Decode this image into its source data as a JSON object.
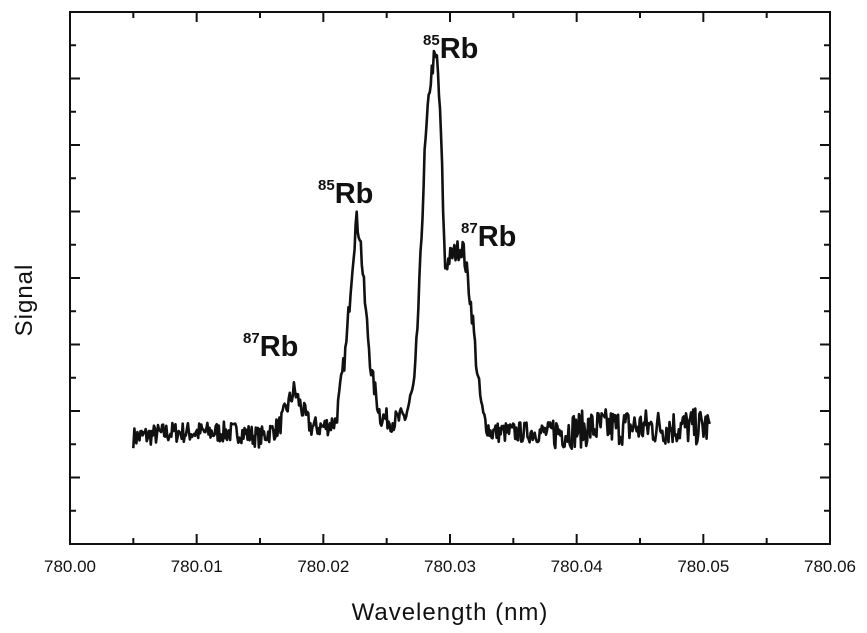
{
  "chart_data": {
    "type": "line",
    "xlabel": "Wavelength (nm)",
    "ylabel": "Signal",
    "xlim": [
      780.0,
      780.06
    ],
    "ylim": [
      0,
      1
    ],
    "x_ticks": [
      "780.00",
      "780.01",
      "780.02",
      "780.03",
      "780.04",
      "780.05",
      "780.06"
    ],
    "y_ticks_labeled": false,
    "grid": false,
    "series": [
      {
        "x": [
          780.005,
          780.008,
          780.011,
          780.0135,
          780.015,
          780.0165,
          780.0172,
          780.0177,
          780.0182,
          780.019,
          780.02,
          780.021,
          780.0218,
          780.0222,
          780.0226,
          780.0229,
          780.0233,
          780.0238,
          780.0245,
          780.0255,
          780.0265,
          780.0272,
          780.0276,
          780.028,
          780.0284,
          780.0287,
          780.029,
          780.0293,
          780.0296,
          780.03,
          780.0305,
          780.031,
          780.0314,
          780.0318,
          780.0322,
          780.0326,
          780.0332,
          780.034,
          780.038,
          780.042,
          780.046,
          780.0505
        ],
        "y": [
          0.2,
          0.21,
          0.21,
          0.21,
          0.2,
          0.22,
          0.26,
          0.29,
          0.26,
          0.22,
          0.22,
          0.23,
          0.37,
          0.5,
          0.61,
          0.58,
          0.45,
          0.32,
          0.24,
          0.23,
          0.24,
          0.3,
          0.49,
          0.73,
          0.86,
          0.91,
          0.91,
          0.76,
          0.52,
          0.54,
          0.55,
          0.56,
          0.5,
          0.42,
          0.31,
          0.24,
          0.21,
          0.21,
          0.21,
          0.22,
          0.22,
          0.22
        ]
      }
    ],
    "annotations": [
      {
        "isotope": "87",
        "element": "Rb",
        "x": 780.0178
      },
      {
        "isotope": "85",
        "element": "Rb",
        "x": 780.0225
      },
      {
        "isotope": "85",
        "element": "Rb",
        "x": 780.029
      },
      {
        "isotope": "87",
        "element": "Rb",
        "x": 780.0318
      }
    ]
  }
}
